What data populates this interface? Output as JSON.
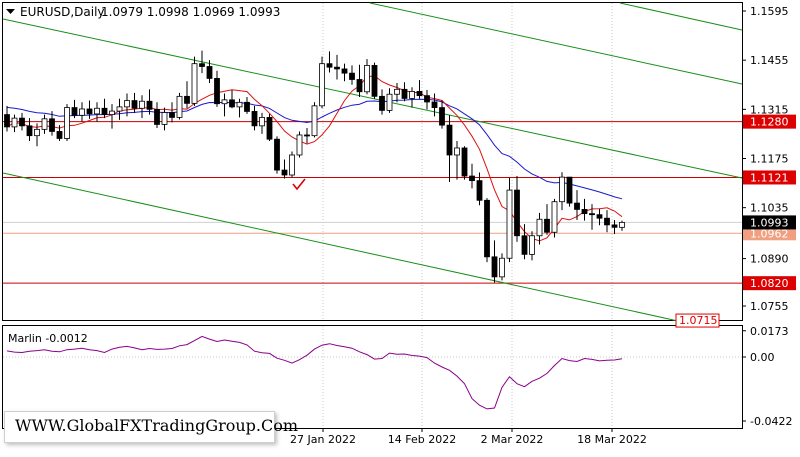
{
  "header": {
    "symbol_text": "EURUSD,Daily",
    "ohlc_text": "1.0979 1.0998 1.0969 1.0993"
  },
  "indicator": {
    "label": "Marlin -0.0012"
  },
  "watermark": "WWW.GlobalFXTradingGroup.Com",
  "colors": {
    "bull_candle": "#ffffff",
    "bear_candle": "#000000",
    "ma_fast": "#dd1111",
    "ma_slow": "#1a1acc",
    "channel": "#1a8f1a",
    "level_line": "#cc0000",
    "current_line": "#f0a080",
    "marlin": "#8b008b",
    "level_label_bg": "#dd0000"
  },
  "chart_data": [
    {
      "type": "candlestick",
      "title": "EURUSD,Daily",
      "ylim": [
        1.0715,
        1.16
      ],
      "y_ticks": [
        "1.1595",
        "1.1455",
        "1.1315",
        "1.1175",
        "1.1035",
        "1.0890",
        "1.0755"
      ],
      "x_ticks": [
        "27 Jan 2022",
        "14 Feb 2022",
        "2 Mar 2022",
        "18 Mar 2022"
      ],
      "current_price": "1.0993",
      "level_labels": [
        "1.1280",
        "1.1121",
        "1.0962",
        "1.0820",
        "1.0715"
      ],
      "candles": [
        [
          1.13,
          1.1325,
          1.1252,
          1.1265
        ],
        [
          1.1265,
          1.13,
          1.125,
          1.129
        ],
        [
          1.129,
          1.1305,
          1.1255,
          1.1268
        ],
        [
          1.1268,
          1.129,
          1.1225,
          1.124
        ],
        [
          1.124,
          1.1275,
          1.121,
          1.1258
        ],
        [
          1.1258,
          1.13,
          1.1245,
          1.1288
        ],
        [
          1.1288,
          1.131,
          1.124,
          1.1252
        ],
        [
          1.1252,
          1.127,
          1.1225,
          1.1232
        ],
        [
          1.1232,
          1.133,
          1.1225,
          1.132
        ],
        [
          1.132,
          1.1342,
          1.129,
          1.1298
        ],
        [
          1.1298,
          1.1335,
          1.128,
          1.1316
        ],
        [
          1.1316,
          1.134,
          1.1288,
          1.1302
        ],
        [
          1.1302,
          1.1335,
          1.128,
          1.1318
        ],
        [
          1.1318,
          1.1345,
          1.129,
          1.13
        ],
        [
          1.13,
          1.133,
          1.126,
          1.131
        ],
        [
          1.131,
          1.1345,
          1.1285,
          1.1322
        ],
        [
          1.1322,
          1.136,
          1.1295,
          1.134
        ],
        [
          1.134,
          1.1362,
          1.1305,
          1.1318
        ],
        [
          1.1318,
          1.1355,
          1.129,
          1.1338
        ],
        [
          1.1338,
          1.1372,
          1.13,
          1.1315
        ],
        [
          1.1315,
          1.1335,
          1.1262,
          1.1272
        ],
        [
          1.1272,
          1.132,
          1.1255,
          1.1306
        ],
        [
          1.1306,
          1.1335,
          1.1278,
          1.1292
        ],
        [
          1.1292,
          1.1362,
          1.1286,
          1.1352
        ],
        [
          1.1352,
          1.1395,
          1.1318,
          1.1332
        ],
        [
          1.1332,
          1.1465,
          1.1325,
          1.1445
        ],
        [
          1.1445,
          1.1482,
          1.1418,
          1.1437
        ],
        [
          1.1437,
          1.1455,
          1.139,
          1.1403
        ],
        [
          1.1403,
          1.1425,
          1.1322,
          1.1331
        ],
        [
          1.1331,
          1.136,
          1.1295,
          1.1342
        ],
        [
          1.1342,
          1.137,
          1.1318,
          1.1322
        ],
        [
          1.1322,
          1.1345,
          1.1292,
          1.1335
        ],
        [
          1.1335,
          1.135,
          1.1302,
          1.1309
        ],
        [
          1.1309,
          1.1325,
          1.1255,
          1.1268
        ],
        [
          1.1268,
          1.1305,
          1.1245,
          1.1292
        ],
        [
          1.1292,
          1.1302,
          1.1225,
          1.123
        ],
        [
          1.123,
          1.1238,
          1.1132,
          1.1142
        ],
        [
          1.1142,
          1.1172,
          1.1118,
          1.1128
        ],
        [
          1.1128,
          1.1195,
          1.1122,
          1.1185
        ],
        [
          1.1185,
          1.1252,
          1.1178,
          1.1242
        ],
        [
          1.1242,
          1.1262,
          1.1218,
          1.124
        ],
        [
          1.124,
          1.1335,
          1.1235,
          1.1325
        ],
        [
          1.1325,
          1.1465,
          1.1318,
          1.1445
        ],
        [
          1.1445,
          1.148,
          1.142,
          1.1435
        ],
        [
          1.1435,
          1.147,
          1.14,
          1.143
        ],
        [
          1.143,
          1.1445,
          1.1395,
          1.1418
        ],
        [
          1.1418,
          1.144,
          1.1385,
          1.14
        ],
        [
          1.14,
          1.1442,
          1.135,
          1.1365
        ],
        [
          1.1365,
          1.1458,
          1.1358,
          1.144
        ],
        [
          1.144,
          1.1448,
          1.1345,
          1.1352
        ],
        [
          1.1352,
          1.1372,
          1.13,
          1.1312
        ],
        [
          1.1312,
          1.1375,
          1.1305,
          1.1358
        ],
        [
          1.1358,
          1.139,
          1.1335,
          1.1372
        ],
        [
          1.1372,
          1.1392,
          1.1338,
          1.1346
        ],
        [
          1.1346,
          1.1378,
          1.132,
          1.1366
        ],
        [
          1.1366,
          1.1398,
          1.1345,
          1.1354
        ],
        [
          1.1354,
          1.137,
          1.1315,
          1.1336
        ],
        [
          1.1336,
          1.136,
          1.1295,
          1.132
        ],
        [
          1.132,
          1.134,
          1.126,
          1.127
        ],
        [
          1.127,
          1.1298,
          1.1108,
          1.1185
        ],
        [
          1.1185,
          1.1225,
          1.1115,
          1.1205
        ],
        [
          1.1205,
          1.121,
          1.1115,
          1.1125
        ],
        [
          1.1125,
          1.116,
          1.109,
          1.1112
        ],
        [
          1.1112,
          1.1135,
          1.1042,
          1.1056
        ],
        [
          1.1056,
          1.1062,
          1.088,
          1.0895
        ],
        [
          1.0895,
          1.0942,
          1.0822,
          1.0838
        ],
        [
          1.0838,
          1.0905,
          1.0828,
          1.0891
        ],
        [
          1.0891,
          1.112,
          1.088,
          1.1085
        ],
        [
          1.1085,
          1.1125,
          1.0938,
          1.0955
        ],
        [
          1.0955,
          1.0988,
          1.0888,
          1.0902
        ],
        [
          1.0902,
          1.0968,
          1.0885,
          1.0955
        ],
        [
          1.0955,
          1.102,
          1.093,
          1.1002
        ],
        [
          1.1002,
          1.1045,
          1.0958,
          1.0965
        ],
        [
          1.0965,
          1.106,
          1.095,
          1.1052
        ],
        [
          1.1052,
          1.1136,
          1.1028,
          1.1122
        ],
        [
          1.1122,
          1.112,
          1.1038,
          1.1048
        ],
        [
          1.1048,
          1.1085,
          1.1,
          1.103
        ],
        [
          1.103,
          1.106,
          1.0998,
          1.1018
        ],
        [
          1.1018,
          1.1045,
          1.0972,
          1.1015
        ],
        [
          1.1015,
          1.1032,
          1.0985,
          1.1005
        ],
        [
          1.1005,
          1.1028,
          1.0965,
          1.0986
        ],
        [
          1.0986,
          1.1,
          1.096,
          1.0979
        ],
        [
          1.0979,
          1.0998,
          1.0969,
          1.0993
        ]
      ]
    },
    {
      "type": "line",
      "title": "Marlin -0.0012",
      "ylim": [
        -0.0422,
        0.0173
      ],
      "y_ticks": [
        "0.0173",
        "0.00",
        "-0.0422"
      ],
      "series": [
        {
          "values": [
            0.004,
            0.0032,
            0.003,
            0.0038,
            0.0042,
            0.0048,
            0.0038,
            0.0034,
            0.0048,
            0.0052,
            0.0058,
            0.0048,
            0.0042,
            0.003,
            0.0052,
            0.0064,
            0.007,
            0.006,
            0.0048,
            0.0056,
            0.005,
            0.0052,
            0.0056,
            0.0074,
            0.0082,
            0.0108,
            0.0136,
            0.0118,
            0.0102,
            0.0112,
            0.0104,
            0.0096,
            0.008,
            0.0038,
            0.0028,
            0.0024,
            -0.0008,
            -0.0022,
            -0.004,
            -0.0018,
            0.0012,
            0.0052,
            0.0078,
            0.0088,
            0.0076,
            0.0068,
            0.0058,
            0.0034,
            0.0016,
            -0.0014,
            -0.001,
            0.0026,
            0.0018,
            0.002,
            0.001,
            0.0006,
            -0.0004,
            -0.004,
            -0.0066,
            -0.0088,
            -0.0126,
            -0.0176,
            -0.0274,
            -0.0318,
            -0.0342,
            -0.0336,
            -0.02,
            -0.013,
            -0.0176,
            -0.0196,
            -0.016,
            -0.014,
            -0.0108,
            -0.0056,
            -0.001,
            -0.0024,
            -0.003,
            -0.001,
            -0.0016,
            -0.0026,
            -0.0022,
            -0.002,
            -0.0012
          ]
        }
      ]
    }
  ]
}
